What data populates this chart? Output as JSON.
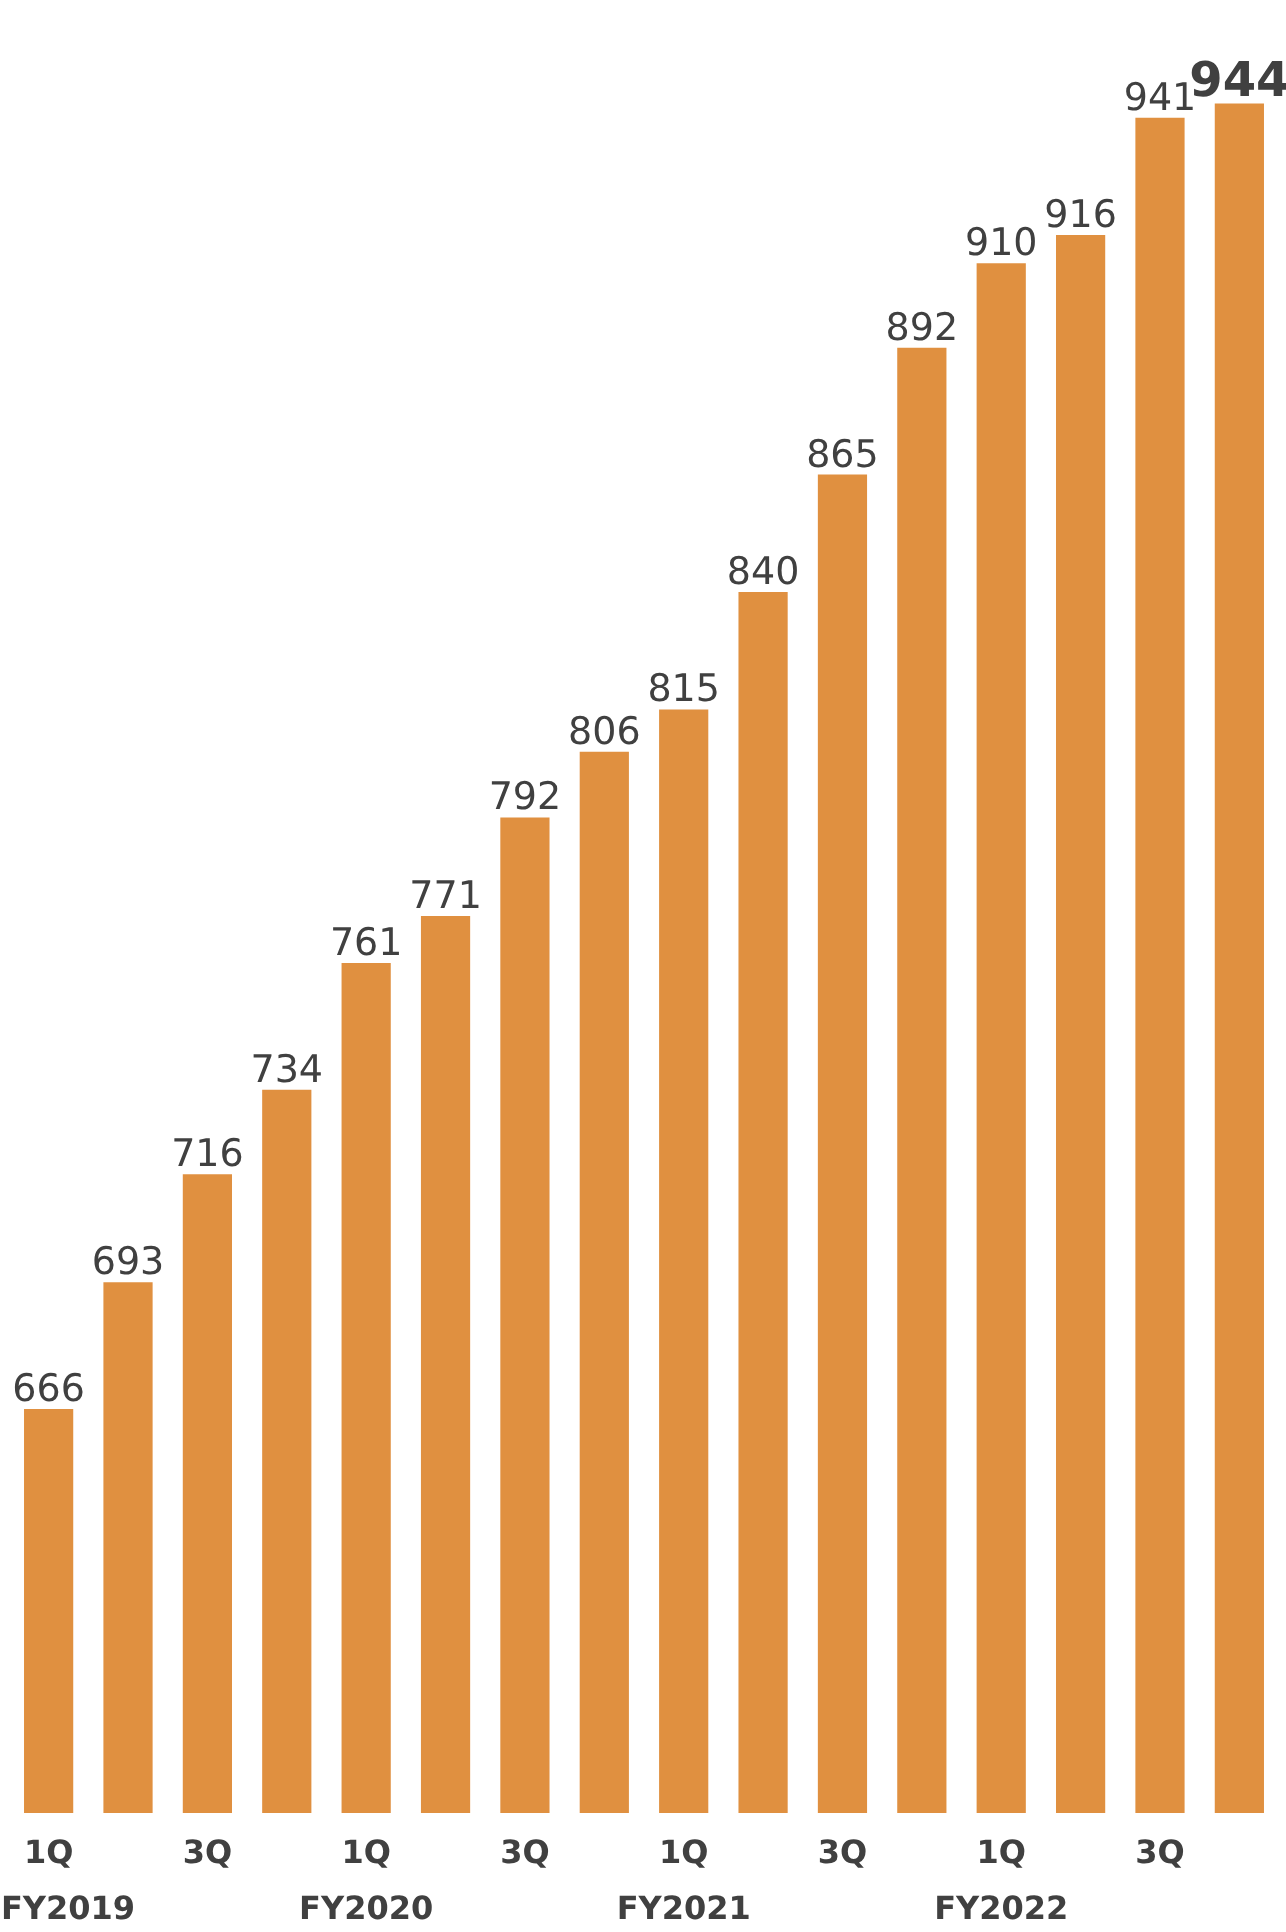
{
  "chart_data": {
    "type": "bar",
    "categories": [
      "1Q",
      null,
      "3Q",
      null,
      "1Q",
      null,
      "3Q",
      null,
      "1Q",
      null,
      "3Q",
      null,
      "1Q",
      null,
      "3Q",
      null
    ],
    "values": [
      666,
      693,
      716,
      734,
      761,
      771,
      792,
      806,
      815,
      840,
      865,
      892,
      910,
      916,
      941,
      944
    ],
    "color": "#e09040",
    "ylim": [
      580,
      944
    ],
    "data_labels": true,
    "tick_labels": "x",
    "annotations": [
      "FY2019",
      "FY2020",
      "FY2021",
      "FY2022"
    ]
  }
}
